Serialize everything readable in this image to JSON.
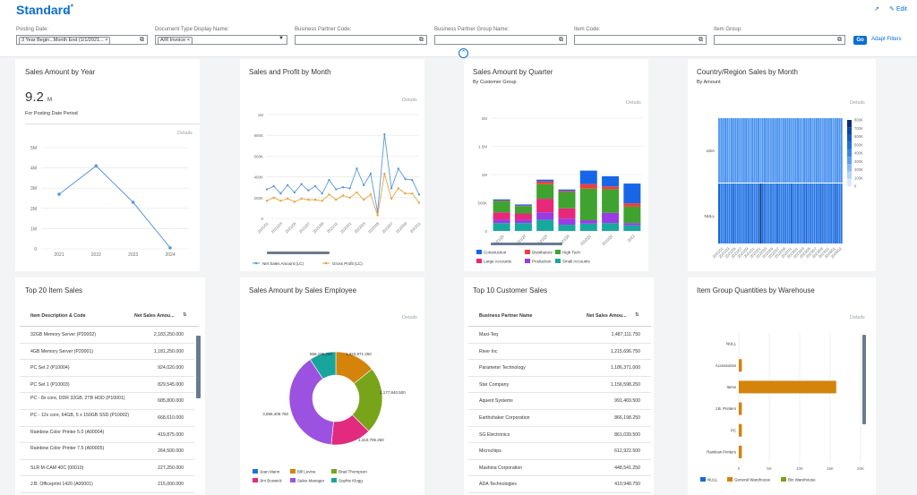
{
  "header": {
    "variant_title": "Standard",
    "variant_asterisk": "*",
    "chevron_icon": "chevron-down-icon",
    "share_icon": "share-icon",
    "edit_label": "Edit",
    "filters": [
      {
        "label": "Posting Date:",
        "token": "3 Year Begin...Month End (1/1/2021...",
        "type": "value-help"
      },
      {
        "label": "Document Type Display Name:",
        "token": "A/R Invoice",
        "type": "dropdown"
      },
      {
        "label": "Business Partner Code:",
        "token": "",
        "type": "value-help"
      },
      {
        "label": "Business Partner Group Name:",
        "token": "",
        "type": "value-help"
      },
      {
        "label": "Item Code:",
        "token": "",
        "type": "value-help"
      },
      {
        "label": "Item Group:",
        "token": "",
        "type": "value-help"
      }
    ],
    "go_label": "Go",
    "adapt_filters_label": "Adapt Filters"
  },
  "cards": {
    "sales_by_year": {
      "title": "Sales Amount by Year",
      "kpi_value": "9.2",
      "kpi_unit": "M",
      "kpi_subtitle": "For Posting Date Period",
      "details_label": "Details"
    },
    "sales_profit_month": {
      "title": "Sales and Profit by Month",
      "details_label": "Details"
    },
    "sales_by_quarter": {
      "title": "Sales Amount by Quarter",
      "subtitle": "By Customer Group",
      "details_label": "Details"
    },
    "country_sales": {
      "title": "Country/Region Sales by Month",
      "subtitle": "By Amount",
      "details_label": "Details"
    },
    "top_items": {
      "title": "Top 20 Item Sales",
      "col1": "Item Description & Code",
      "col2": "Net Sales Amou...",
      "rows": [
        {
          "name": "32GB Memory Server (P20002)",
          "value": "2,183,250.000"
        },
        {
          "name": "4GB Memory Server (P20001)",
          "value": "1,181,250.000"
        },
        {
          "name": "PC Set 2 (P10004)",
          "value": "924,020.000"
        },
        {
          "name": "PC Set 1 (P10003)",
          "value": "829,545.000"
        },
        {
          "name": "PC - 8x core, DDR 32GB, 2TB HDD (P10001)",
          "value": "685,800.000"
        },
        {
          "name": "PC - 12x core, 64GB, 5 x 150GB SSD (P10002)",
          "value": "668,610.000"
        },
        {
          "name": "Rainbow Color Printer 5.0 (A00004)",
          "value": "419,875.000"
        },
        {
          "name": "Rainbow Color Printer 7.5 (A00005)",
          "value": "264,500.000"
        },
        {
          "name": "SLR M-CAM 40C (00010)",
          "value": "227,250.000"
        },
        {
          "name": "J.B. Officeprint 1420 (A00001)",
          "value": "215,000.000"
        }
      ]
    },
    "sales_by_employee": {
      "title": "Sales Amount by Sales Employee"
    },
    "top_customers": {
      "title": "Top 10 Customer Sales",
      "col1": "Business Partner Name",
      "col2": "Net Sales Amou...",
      "rows": [
        {
          "name": "Maxi-Teq",
          "value": "1,487,111.750"
        },
        {
          "name": "River Inc",
          "value": "1,215,696.750"
        },
        {
          "name": "Parameter Technology",
          "value": "1,186,371.000"
        },
        {
          "name": "Star Company",
          "value": "1,156,598.250"
        },
        {
          "name": "Aquent Systems",
          "value": "991,469.500"
        },
        {
          "name": "Earthshaker Corporation",
          "value": "866,198.250"
        },
        {
          "name": "SG Electronics",
          "value": "861,039.500"
        },
        {
          "name": "Microchips",
          "value": "612,922.500"
        },
        {
          "name": "Mashina Corporation",
          "value": "448,541.250"
        },
        {
          "name": "ADA Technologies",
          "value": "410,948.750"
        }
      ]
    },
    "warehouse_quantities": {
      "title": "Item Group Quantities by Warehouse",
      "details_label": "Details"
    }
  },
  "colors": {
    "brand": "#0a6ed1",
    "line_sales": "#5899da",
    "line_profit": "#e8a33b",
    "construction": "#1866e8",
    "distributors": "#ef3f3a",
    "high_tech": "#3fa32f",
    "large_accounts": "#e8287a",
    "production": "#9a3be6",
    "small_accounts": "#17a99e",
    "donut_jean": "#1f73d8",
    "donut_bill": "#d4830b",
    "donut_brad": "#78a41a",
    "donut_jim": "#e22b7e",
    "donut_manager": "#9b52e0",
    "donut_sophie": "#17a59c",
    "wh_null": "#1866e8",
    "wh_general": "#d4830b",
    "wh_bin": "#78a41a"
  },
  "chart_data": [
    {
      "type": "line",
      "title": "Sales Amount by Year",
      "x": [
        "2021",
        "2022",
        "2023",
        "2024"
      ],
      "series": [
        {
          "values": [
            2.7,
            4.1,
            2.3,
            0.05
          ]
        }
      ],
      "yticks": [
        "0",
        "1M",
        "2M",
        "3M",
        "4M",
        "5M"
      ],
      "ylim": [
        0,
        5
      ]
    },
    {
      "type": "line",
      "title": "Sales and Profit by Month",
      "x": [
        "2021/01",
        "2021/02",
        "2021/03",
        "2021/04",
        "2021/05",
        "2021/06",
        "2021/07",
        "2021/08",
        "2021/09",
        "2021/10",
        "2021/11",
        "2021/12",
        "2022/01",
        "2022/02",
        "2022/03",
        "2022/04",
        "2022/05",
        "2022/06",
        "2022/07",
        "2022/08",
        "2022/09",
        "2022/10",
        "2022/11"
      ],
      "x_tick_labels": [
        "2021/01",
        "2021/03",
        "2021/05",
        "2021/07",
        "2021/09",
        "2021/11",
        "2022/01",
        "2022/03",
        "2022/05",
        "2022/07",
        "2022/09",
        "2022/11"
      ],
      "series": [
        {
          "name": "Net Sales Amount (LC)",
          "values": [
            280,
            310,
            240,
            320,
            250,
            330,
            270,
            310,
            240,
            370,
            280,
            300,
            290,
            480,
            320,
            430,
            60,
            810,
            290,
            480,
            380,
            370,
            230
          ]
        },
        {
          "name": "Gross Profit (LC)",
          "values": [
            170,
            200,
            170,
            190,
            160,
            190,
            180,
            180,
            170,
            230,
            180,
            220,
            200,
            250,
            180,
            230,
            30,
            430,
            190,
            290,
            240,
            240,
            150
          ]
        }
      ],
      "yticks": [
        "0",
        "200K",
        "400K",
        "600K",
        "800K",
        "1M"
      ],
      "ylim": [
        0,
        1000
      ]
    },
    {
      "type": "bar",
      "stacked": true,
      "title": "Sales Amount by Quarter",
      "subtitle": "By Customer Group",
      "categories": [
        "2021Q1",
        "2021Q2",
        "2021Q3",
        "2021Q4",
        "2022Q1",
        "2022Q2",
        "2022"
      ],
      "series": [
        {
          "name": "Construction",
          "values": [
            20,
            20,
            30,
            25,
            240,
            180,
            350
          ]
        },
        {
          "name": "Distributors",
          "values": [
            10,
            10,
            50,
            20,
            80,
            50,
            60
          ]
        },
        {
          "name": "High Tech",
          "values": [
            200,
            130,
            260,
            290,
            560,
            420,
            290
          ]
        },
        {
          "name": "Large Accounts",
          "values": [
            130,
            110,
            240,
            180,
            0,
            0,
            0
          ]
        },
        {
          "name": "Production",
          "values": [
            60,
            60,
            130,
            110,
            60,
            180,
            40
          ]
        },
        {
          "name": "Small Accounts",
          "values": [
            140,
            140,
            200,
            110,
            130,
            140,
            100
          ]
        }
      ],
      "yticks": [
        "0",
        "500K",
        "1M",
        "1.5M",
        "2M"
      ],
      "ylim": [
        0,
        2000
      ]
    },
    {
      "type": "heatmap",
      "title": "Country/Region Sales by Month",
      "subtitle": "By Amount",
      "rows": [
        "USA",
        "NULL"
      ],
      "columns": [
        "2021/01",
        "2021/03",
        "2021/05",
        "2021/07",
        "2021/09",
        "2021/11",
        "2022/01",
        "2022/03",
        "2022/05",
        "2022/07",
        "2022/09",
        "2022/11",
        "2023/01",
        "2023/03",
        "2023/05",
        "2023/07",
        "2023/09",
        "2023/11",
        "2024/01",
        "2024/02"
      ],
      "scale_ticks": [
        "0",
        "100K",
        "200K",
        "300K",
        "400K",
        "500K",
        "600K",
        "700K",
        "800K"
      ]
    },
    {
      "type": "pie",
      "title": "Sales Amount by Sales Employee",
      "slices": [
        {
          "name": "Jean Mann",
          "value": 0
        },
        {
          "name": "Bill Levine",
          "value": 1323871.25
        },
        {
          "name": "Brad Thompson",
          "value": 2177840.5
        },
        {
          "name": "Jim Boswick",
          "value": 1310706.25
        },
        {
          "name": "Sales Manager",
          "value": 3656406.75
        },
        {
          "name": "Sophie Klogg",
          "value": 866196.25
        }
      ],
      "data_labels": [
        "866,196.250",
        "1,323,871.250",
        "2,177,840.500",
        "1,310,706.250",
        "3,656,406.750"
      ]
    },
    {
      "type": "bar",
      "orientation": "horizontal",
      "title": "Item Group Quantities by Warehouse",
      "categories": [
        "NULL",
        "Accessories",
        "Items",
        "J.B. Printers",
        "PC",
        "Rainbow Printers"
      ],
      "series": [
        {
          "name": "NULL",
          "values": [
            0,
            0,
            0,
            0,
            0,
            0
          ]
        },
        {
          "name": "General Warehouse",
          "values": [
            0,
            500,
            16000,
            500,
            500,
            500
          ]
        },
        {
          "name": "Bin Warehouse",
          "values": [
            0,
            0,
            0,
            0,
            0,
            0
          ]
        }
      ],
      "xticks": [
        "0",
        "5K",
        "10K",
        "15K",
        "20K"
      ],
      "xlim": [
        0,
        20000
      ]
    }
  ]
}
